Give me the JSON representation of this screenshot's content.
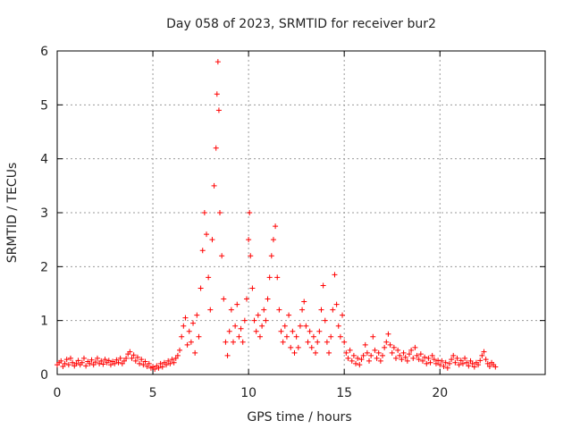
{
  "chart_data": {
    "type": "scatter",
    "title": "Day 058 of 2023, SRMTID for receiver bur2",
    "xlabel": "GPS time / hours",
    "ylabel": "SRMTID / TECUs",
    "xlim": [
      0,
      25.5
    ],
    "ylim": [
      0,
      6
    ],
    "x_ticks": [
      0,
      5,
      10,
      15,
      20
    ],
    "y_ticks": [
      0,
      1,
      2,
      3,
      4,
      5,
      6
    ],
    "grid": true,
    "marker": "+",
    "color": "#ff0000",
    "series": [
      {
        "name": "SRMTID",
        "points": [
          [
            0.0,
            0.18
          ],
          [
            0.1,
            0.22
          ],
          [
            0.2,
            0.25
          ],
          [
            0.3,
            0.15
          ],
          [
            0.4,
            0.2
          ],
          [
            0.5,
            0.28
          ],
          [
            0.6,
            0.18
          ],
          [
            0.7,
            0.3
          ],
          [
            0.8,
            0.22
          ],
          [
            0.9,
            0.16
          ],
          [
            1.0,
            0.2
          ],
          [
            1.1,
            0.26
          ],
          [
            1.2,
            0.18
          ],
          [
            1.3,
            0.22
          ],
          [
            1.4,
            0.3
          ],
          [
            1.5,
            0.16
          ],
          [
            1.6,
            0.24
          ],
          [
            1.7,
            0.2
          ],
          [
            1.8,
            0.27
          ],
          [
            1.9,
            0.18
          ],
          [
            2.0,
            0.23
          ],
          [
            2.1,
            0.3
          ],
          [
            2.2,
            0.2
          ],
          [
            2.3,
            0.25
          ],
          [
            2.4,
            0.19
          ],
          [
            2.5,
            0.28
          ],
          [
            2.6,
            0.22
          ],
          [
            2.7,
            0.26
          ],
          [
            2.8,
            0.18
          ],
          [
            2.9,
            0.24
          ],
          [
            3.0,
            0.2
          ],
          [
            3.1,
            0.27
          ],
          [
            3.2,
            0.22
          ],
          [
            3.3,
            0.3
          ],
          [
            3.4,
            0.2
          ],
          [
            3.5,
            0.25
          ],
          [
            3.6,
            0.3
          ],
          [
            3.7,
            0.38
          ],
          [
            3.8,
            0.42
          ],
          [
            3.9,
            0.3
          ],
          [
            4.0,
            0.36
          ],
          [
            4.1,
            0.25
          ],
          [
            4.2,
            0.32
          ],
          [
            4.3,
            0.2
          ],
          [
            4.4,
            0.28
          ],
          [
            4.5,
            0.18
          ],
          [
            4.6,
            0.24
          ],
          [
            4.7,
            0.15
          ],
          [
            4.8,
            0.2
          ],
          [
            4.9,
            0.12
          ],
          [
            5.0,
            0.14
          ],
          [
            5.1,
            0.1
          ],
          [
            5.2,
            0.16
          ],
          [
            5.3,
            0.12
          ],
          [
            5.4,
            0.2
          ],
          [
            5.5,
            0.14
          ],
          [
            5.6,
            0.22
          ],
          [
            5.7,
            0.18
          ],
          [
            5.8,
            0.25
          ],
          [
            5.9,
            0.2
          ],
          [
            6.0,
            0.28
          ],
          [
            6.1,
            0.22
          ],
          [
            6.2,
            0.3
          ],
          [
            6.3,
            0.35
          ],
          [
            6.4,
            0.45
          ],
          [
            6.5,
            0.7
          ],
          [
            6.6,
            0.9
          ],
          [
            6.7,
            1.05
          ],
          [
            6.8,
            0.55
          ],
          [
            6.9,
            0.8
          ],
          [
            7.0,
            0.6
          ],
          [
            7.1,
            0.95
          ],
          [
            7.2,
            0.4
          ],
          [
            7.3,
            1.1
          ],
          [
            7.4,
            0.7
          ],
          [
            7.5,
            1.6
          ],
          [
            7.6,
            2.3
          ],
          [
            7.7,
            3.0
          ],
          [
            7.8,
            2.6
          ],
          [
            7.9,
            1.8
          ],
          [
            8.0,
            1.2
          ],
          [
            8.1,
            2.5
          ],
          [
            8.2,
            3.5
          ],
          [
            8.3,
            4.2
          ],
          [
            8.35,
            5.2
          ],
          [
            8.4,
            5.8
          ],
          [
            8.45,
            4.9
          ],
          [
            8.5,
            3.0
          ],
          [
            8.6,
            2.2
          ],
          [
            8.7,
            1.4
          ],
          [
            8.8,
            0.6
          ],
          [
            8.9,
            0.35
          ],
          [
            9.0,
            0.8
          ],
          [
            9.1,
            1.2
          ],
          [
            9.2,
            0.6
          ],
          [
            9.3,
            0.9
          ],
          [
            9.4,
            1.3
          ],
          [
            9.5,
            0.7
          ],
          [
            9.6,
            0.85
          ],
          [
            9.7,
            0.6
          ],
          [
            9.8,
            1.0
          ],
          [
            9.9,
            1.4
          ],
          [
            10.0,
            2.5
          ],
          [
            10.05,
            3.0
          ],
          [
            10.1,
            2.2
          ],
          [
            10.2,
            1.6
          ],
          [
            10.3,
            1.0
          ],
          [
            10.4,
            0.8
          ],
          [
            10.5,
            1.1
          ],
          [
            10.6,
            0.7
          ],
          [
            10.7,
            0.9
          ],
          [
            10.8,
            1.2
          ],
          [
            10.9,
            1.0
          ],
          [
            11.0,
            1.4
          ],
          [
            11.1,
            1.8
          ],
          [
            11.2,
            2.2
          ],
          [
            11.3,
            2.5
          ],
          [
            11.4,
            2.75
          ],
          [
            11.5,
            1.8
          ],
          [
            11.6,
            1.2
          ],
          [
            11.7,
            0.8
          ],
          [
            11.8,
            0.6
          ],
          [
            11.9,
            0.9
          ],
          [
            12.0,
            0.7
          ],
          [
            12.1,
            1.1
          ],
          [
            12.2,
            0.5
          ],
          [
            12.3,
            0.8
          ],
          [
            12.4,
            0.4
          ],
          [
            12.5,
            0.7
          ],
          [
            12.6,
            0.5
          ],
          [
            12.7,
            0.9
          ],
          [
            12.8,
            1.2
          ],
          [
            12.9,
            1.35
          ],
          [
            13.0,
            0.9
          ],
          [
            13.1,
            0.6
          ],
          [
            13.2,
            0.8
          ],
          [
            13.3,
            0.5
          ],
          [
            13.4,
            0.7
          ],
          [
            13.5,
            0.4
          ],
          [
            13.6,
            0.6
          ],
          [
            13.7,
            0.8
          ],
          [
            13.8,
            1.2
          ],
          [
            13.9,
            1.65
          ],
          [
            14.0,
            1.0
          ],
          [
            14.1,
            0.6
          ],
          [
            14.2,
            0.4
          ],
          [
            14.3,
            0.7
          ],
          [
            14.4,
            1.2
          ],
          [
            14.5,
            1.85
          ],
          [
            14.6,
            1.3
          ],
          [
            14.7,
            0.9
          ],
          [
            14.8,
            0.7
          ],
          [
            14.9,
            1.1
          ],
          [
            15.0,
            0.6
          ],
          [
            15.1,
            0.4
          ],
          [
            15.2,
            0.3
          ],
          [
            15.3,
            0.45
          ],
          [
            15.4,
            0.25
          ],
          [
            15.5,
            0.35
          ],
          [
            15.6,
            0.2
          ],
          [
            15.7,
            0.3
          ],
          [
            15.8,
            0.18
          ],
          [
            15.9,
            0.28
          ],
          [
            16.0,
            0.35
          ],
          [
            16.1,
            0.55
          ],
          [
            16.2,
            0.4
          ],
          [
            16.3,
            0.25
          ],
          [
            16.4,
            0.35
          ],
          [
            16.5,
            0.7
          ],
          [
            16.6,
            0.45
          ],
          [
            16.7,
            0.3
          ],
          [
            16.8,
            0.4
          ],
          [
            16.9,
            0.25
          ],
          [
            17.0,
            0.35
          ],
          [
            17.1,
            0.5
          ],
          [
            17.2,
            0.6
          ],
          [
            17.3,
            0.75
          ],
          [
            17.4,
            0.55
          ],
          [
            17.5,
            0.4
          ],
          [
            17.6,
            0.5
          ],
          [
            17.7,
            0.3
          ],
          [
            17.8,
            0.45
          ],
          [
            17.9,
            0.35
          ],
          [
            18.0,
            0.28
          ],
          [
            18.1,
            0.4
          ],
          [
            18.2,
            0.32
          ],
          [
            18.3,
            0.25
          ],
          [
            18.4,
            0.38
          ],
          [
            18.5,
            0.45
          ],
          [
            18.6,
            0.3
          ],
          [
            18.7,
            0.5
          ],
          [
            18.8,
            0.35
          ],
          [
            18.9,
            0.28
          ],
          [
            19.0,
            0.38
          ],
          [
            19.1,
            0.25
          ],
          [
            19.2,
            0.32
          ],
          [
            19.3,
            0.2
          ],
          [
            19.4,
            0.3
          ],
          [
            19.5,
            0.22
          ],
          [
            19.6,
            0.35
          ],
          [
            19.7,
            0.28
          ],
          [
            19.8,
            0.2
          ],
          [
            19.9,
            0.26
          ],
          [
            20.0,
            0.18
          ],
          [
            20.1,
            0.25
          ],
          [
            20.2,
            0.15
          ],
          [
            20.3,
            0.22
          ],
          [
            20.4,
            0.12
          ],
          [
            20.5,
            0.2
          ],
          [
            20.6,
            0.28
          ],
          [
            20.7,
            0.35
          ],
          [
            20.8,
            0.22
          ],
          [
            20.9,
            0.3
          ],
          [
            21.0,
            0.18
          ],
          [
            21.1,
            0.26
          ],
          [
            21.2,
            0.2
          ],
          [
            21.3,
            0.3
          ],
          [
            21.4,
            0.22
          ],
          [
            21.5,
            0.16
          ],
          [
            21.6,
            0.25
          ],
          [
            21.7,
            0.2
          ],
          [
            21.8,
            0.14
          ],
          [
            21.9,
            0.22
          ],
          [
            22.0,
            0.18
          ],
          [
            22.1,
            0.26
          ],
          [
            22.2,
            0.35
          ],
          [
            22.3,
            0.42
          ],
          [
            22.4,
            0.28
          ],
          [
            22.5,
            0.2
          ],
          [
            22.6,
            0.15
          ],
          [
            22.7,
            0.22
          ],
          [
            22.8,
            0.18
          ],
          [
            22.9,
            0.14
          ]
        ]
      }
    ]
  }
}
